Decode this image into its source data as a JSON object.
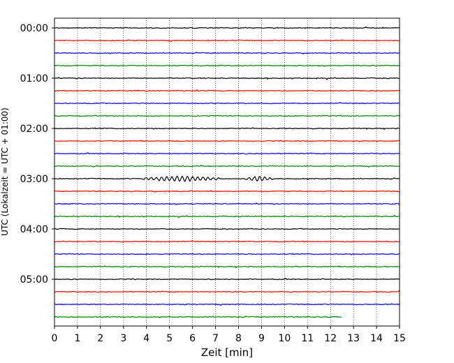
{
  "chart_data": {
    "type": "line",
    "title": "",
    "xlabel": "Zeit  [min]",
    "ylabel": "UTC (Lokalzeit = UTC + 01:00)",
    "xlim": [
      0,
      15
    ],
    "x_ticks": [
      "0",
      "1",
      "2",
      "3",
      "4",
      "5",
      "6",
      "7",
      "8",
      "9",
      "10",
      "11",
      "12",
      "13",
      "14",
      "15"
    ],
    "y_ticks": [
      "00:00",
      "01:00",
      "02:00",
      "03:00",
      "04:00",
      "05:00"
    ],
    "grid": "vertical dotted",
    "trace_colors": [
      "#000000",
      "#ff0000",
      "#0000ff",
      "#008000"
    ],
    "trace_count": 24,
    "trace_interval_minutes": 15,
    "last_trace_end_minutes": 12.5,
    "bursts": [
      {
        "trace_index": 12,
        "from_minutes": 3.8,
        "to_minutes": 7.2
      },
      {
        "trace_index": 12,
        "from_minutes": 8.3,
        "to_minutes": 9.5
      }
    ]
  }
}
